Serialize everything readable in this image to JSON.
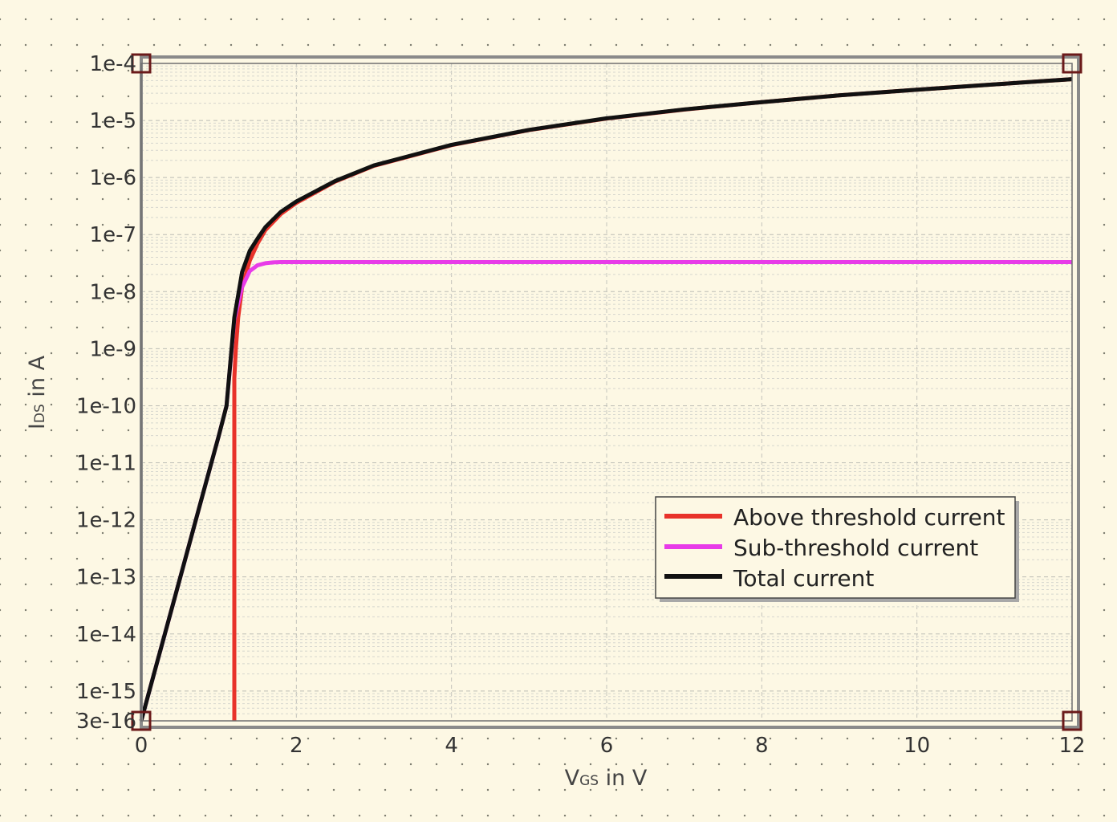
{
  "chart_data": {
    "type": "line",
    "xlabel": {
      "main": "V",
      "sub": "GS",
      "rest": " in V"
    },
    "ylabel": {
      "main": "I",
      "sub": "DS",
      "rest": " in A"
    },
    "xlim": [
      0,
      12
    ],
    "ylim": [
      3e-16,
      0.0001
    ],
    "y_scale": "log",
    "x_ticks": [
      0,
      2,
      4,
      6,
      8,
      10,
      12
    ],
    "y_ticks": [
      {
        "value": 0.0001,
        "label": "1e-4"
      },
      {
        "value": 1e-05,
        "label": "1e-5"
      },
      {
        "value": 1e-06,
        "label": "1e-6"
      },
      {
        "value": 1e-07,
        "label": "1e-7"
      },
      {
        "value": 1e-08,
        "label": "1e-8"
      },
      {
        "value": 1e-09,
        "label": "1e-9"
      },
      {
        "value": 1e-10,
        "label": "1e-10"
      },
      {
        "value": 1e-11,
        "label": "1e-11"
      },
      {
        "value": 1e-12,
        "label": "1e-12"
      },
      {
        "value": 1e-13,
        "label": "1e-13"
      },
      {
        "value": 1e-14,
        "label": "1e-14"
      },
      {
        "value": 1e-15,
        "label": "1e-15"
      },
      {
        "value": 3e-16,
        "label": "3e-16"
      }
    ],
    "grid": true,
    "legend_position": "lower-right",
    "series": [
      {
        "name": "Above threshold current",
        "color": "#e8322a",
        "x": [
          1.2,
          1.2,
          1.22,
          1.25,
          1.3,
          1.4,
          1.5,
          1.6,
          1.8,
          2.0,
          2.5,
          3,
          4,
          5,
          6,
          7,
          8,
          9,
          10,
          11,
          12
        ],
        "y": [
          3e-16,
          3e-10,
          1e-09,
          3.5e-09,
          1.2e-08,
          3.5e-08,
          7e-08,
          1.2e-07,
          2.3e-07,
          3.6e-07,
          8.5e-07,
          1.6e-06,
          3.7e-06,
          6.8e-06,
          1.08e-05,
          1.55e-05,
          2.1e-05,
          2.75e-05,
          3.45e-05,
          4.3e-05,
          5.3e-05
        ]
      },
      {
        "name": "Sub-threshold current",
        "color": "#e83be8",
        "x": [
          0,
          0.2,
          0.4,
          0.6,
          0.8,
          1.0,
          1.1,
          1.2,
          1.3,
          1.4,
          1.5,
          1.6,
          1.7,
          1.8,
          2,
          3,
          4,
          6,
          8,
          10,
          12
        ],
        "y": [
          3e-16,
          3e-15,
          3e-14,
          3e-13,
          3e-12,
          3e-11,
          1e-10,
          3.2e-09,
          1.2e-08,
          2.3e-08,
          2.9e-08,
          3.15e-08,
          3.25e-08,
          3.3e-08,
          3.3e-08,
          3.3e-08,
          3.3e-08,
          3.3e-08,
          3.3e-08,
          3.3e-08,
          3.3e-08
        ]
      },
      {
        "name": "Total current",
        "color": "#111111",
        "x": [
          0,
          0.2,
          0.4,
          0.6,
          0.8,
          1.0,
          1.1,
          1.2,
          1.3,
          1.4,
          1.5,
          1.6,
          1.8,
          2.0,
          2.5,
          3,
          4,
          5,
          6,
          7,
          8,
          9,
          10,
          11,
          12
        ],
        "y": [
          3e-16,
          3e-15,
          3e-14,
          3e-13,
          3e-12,
          3e-11,
          1e-10,
          3.5e-09,
          2.2e-08,
          5.2e-08,
          8.5e-08,
          1.35e-07,
          2.5e-07,
          3.8e-07,
          8.7e-07,
          1.63e-06,
          3.75e-06,
          6.85e-06,
          1.09e-05,
          1.56e-05,
          2.1e-05,
          2.75e-05,
          3.45e-05,
          4.3e-05,
          5.3e-05
        ]
      }
    ]
  }
}
